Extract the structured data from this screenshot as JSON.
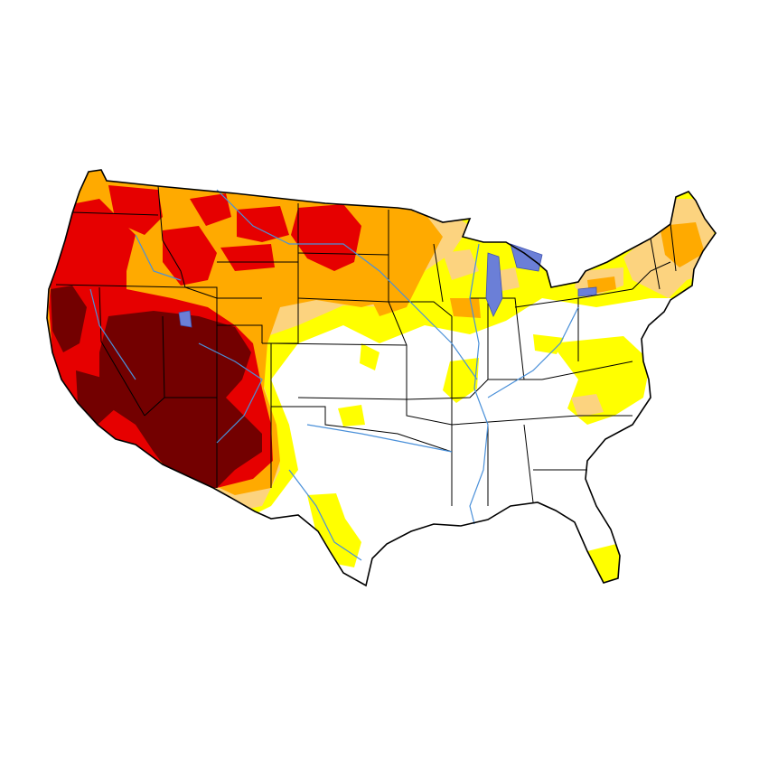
{
  "map": {
    "region": "contiguous-united-states",
    "background_color": "#ffffff",
    "outline_color": "#000000",
    "river_color": "#4a90d9",
    "lake_color": "#6b7fd7",
    "legend": [],
    "drought_colors": {
      "D0": "#ffff00",
      "D1": "#fcd37f",
      "D2": "#ffaa00",
      "D3": "#e60000",
      "D4": "#730000"
    }
  }
}
